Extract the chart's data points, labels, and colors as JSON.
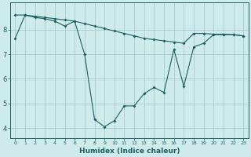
{
  "xlabel": "Humidex (Indice chaleur)",
  "ylabel": "",
  "bg_color": "#ceeaea",
  "line_color": "#1a5f5f",
  "grid_color": "#a8cccc",
  "xlim": [
    -0.5,
    23.5
  ],
  "ylim": [
    3.6,
    9.1
  ],
  "yticks": [
    4,
    5,
    6,
    7,
    8
  ],
  "xticks": [
    0,
    1,
    2,
    3,
    4,
    5,
    6,
    7,
    8,
    9,
    10,
    11,
    12,
    13,
    14,
    15,
    16,
    17,
    18,
    19,
    20,
    21,
    22,
    23
  ],
  "series1_x": [
    0,
    1,
    2,
    3,
    4,
    5,
    6,
    7,
    8,
    9,
    10,
    11,
    12,
    13,
    14,
    15,
    16,
    17,
    18,
    19,
    20,
    21,
    22,
    23
  ],
  "series1_y": [
    7.65,
    8.6,
    8.5,
    8.45,
    8.35,
    8.15,
    8.35,
    7.0,
    4.35,
    4.05,
    4.3,
    4.9,
    4.9,
    5.4,
    5.65,
    5.45,
    7.2,
    5.7,
    7.3,
    7.45,
    7.8,
    7.8,
    7.8,
    7.75
  ],
  "series2_x": [
    0,
    1,
    2,
    3,
    4,
    5,
    6,
    7,
    8,
    9,
    10,
    11,
    12,
    13,
    14,
    15,
    16,
    17,
    18,
    19,
    20,
    21,
    22,
    23
  ],
  "series2_y": [
    8.6,
    8.6,
    8.55,
    8.5,
    8.45,
    8.4,
    8.35,
    8.25,
    8.15,
    8.05,
    7.95,
    7.85,
    7.75,
    7.65,
    7.6,
    7.55,
    7.5,
    7.45,
    7.85,
    7.85,
    7.82,
    7.82,
    7.8,
    7.75
  ]
}
